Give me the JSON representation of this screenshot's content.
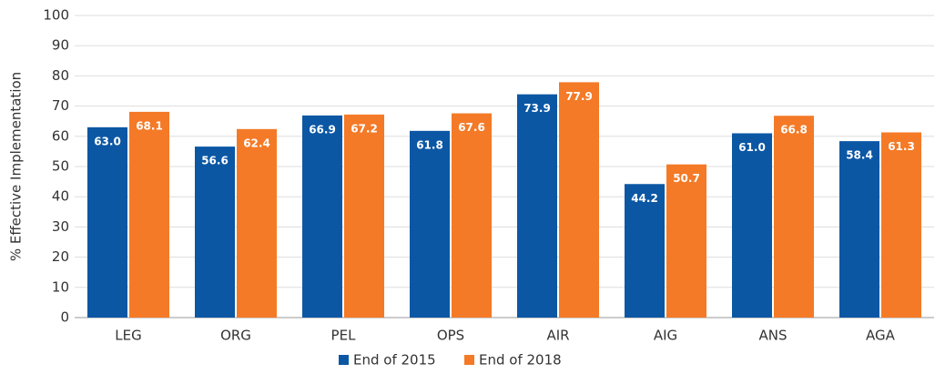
{
  "chart_data": {
    "type": "bar",
    "ylabel": "% Effective Implementation",
    "categories": [
      "LEG",
      "ORG",
      "PEL",
      "OPS",
      "AIR",
      "AIG",
      "ANS",
      "AGA"
    ],
    "series": [
      {
        "name": "End of 2015",
        "color": "#0b57a4",
        "values": [
          63.0,
          56.6,
          66.9,
          61.8,
          73.9,
          44.2,
          61.0,
          58.4
        ],
        "value_labels": [
          "63.0",
          "56.6",
          "66.9",
          "61.8",
          "73.9",
          "44.2",
          "61.0",
          "58.4"
        ]
      },
      {
        "name": "End of 2018",
        "color": "#f47a27",
        "values": [
          68.1,
          62.4,
          67.2,
          67.6,
          77.9,
          50.7,
          66.8,
          61.3
        ],
        "value_labels": [
          "68.1",
          "62.4",
          "67.2",
          "67.6",
          "77.9",
          "50.7",
          "66.8",
          "61.3"
        ]
      }
    ],
    "ylim": [
      0,
      100
    ],
    "yticks": [
      0,
      10,
      20,
      30,
      40,
      50,
      60,
      70,
      80,
      90,
      100
    ],
    "grid": true,
    "legend": "bottom"
  }
}
